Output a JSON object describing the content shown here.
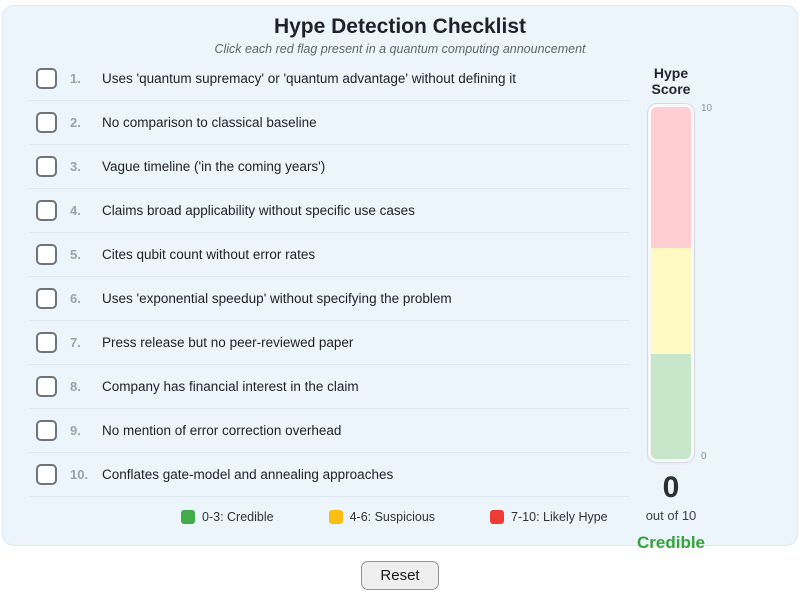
{
  "header": {
    "title": "Hype Detection Checklist",
    "subtitle": "Click each red flag present in a quantum computing announcement"
  },
  "checklist": {
    "items": [
      {
        "number": "1.",
        "label": "Uses 'quantum supremacy' or 'quantum advantage' without defining it",
        "checked": false
      },
      {
        "number": "2.",
        "label": "No comparison to classical baseline",
        "checked": false
      },
      {
        "number": "3.",
        "label": "Vague timeline ('in the coming years')",
        "checked": false
      },
      {
        "number": "4.",
        "label": "Claims broad applicability without specific use cases",
        "checked": false
      },
      {
        "number": "5.",
        "label": "Cites qubit count without error rates",
        "checked": false
      },
      {
        "number": "6.",
        "label": "Uses 'exponential speedup' without specifying the problem",
        "checked": false
      },
      {
        "number": "7.",
        "label": "Press release but no peer-reviewed paper",
        "checked": false
      },
      {
        "number": "8.",
        "label": "Company has financial interest in the claim",
        "checked": false
      },
      {
        "number": "9.",
        "label": "No mention of error correction overhead",
        "checked": false
      },
      {
        "number": "10.",
        "label": "Conflates gate-model and annealing approaches",
        "checked": false
      }
    ]
  },
  "legend": [
    {
      "label": "0-3: Credible",
      "color": "#42ab4a"
    },
    {
      "label": "4-6: Suspicious",
      "color": "#fbbd12"
    },
    {
      "label": "7-10: Likely Hype",
      "color": "#ee3b33"
    }
  ],
  "gauge": {
    "heading": "Hype Score",
    "top_tick": "10",
    "bottom_tick": "0",
    "zones": [
      {
        "range": "7-10",
        "color": "#ffcdd2",
        "pct": 40
      },
      {
        "range": "4-6",
        "color": "#fff9c4",
        "pct": 30
      },
      {
        "range": "0-3",
        "color": "#c8e6c9",
        "pct": 30
      }
    ]
  },
  "score": {
    "value": "0",
    "caption": "out of 10",
    "verdict": "Credible",
    "verdict_color": "#34a43a"
  },
  "reset_label": "Reset"
}
